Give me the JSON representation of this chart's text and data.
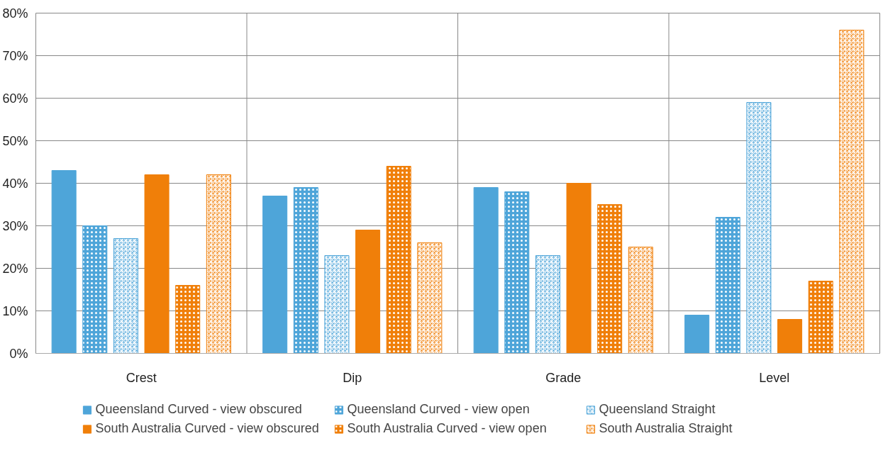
{
  "chart_data": {
    "type": "bar",
    "categories": [
      "Crest",
      "Dip",
      "Grade",
      "Level"
    ],
    "series": [
      {
        "name": "Queensland Curved - view obscured",
        "color": "#4ea5d9",
        "values": [
          43,
          37,
          39,
          9
        ]
      },
      {
        "name": "Queensland Curved - view open",
        "color": "#4ea5d9",
        "values": [
          30,
          39,
          38,
          32
        ]
      },
      {
        "name": "Queensland Straight",
        "color": "#4ea5d9",
        "values": [
          27,
          23,
          23,
          59
        ]
      },
      {
        "name": "South Australia Curved - view obscured",
        "color": "#f07f09",
        "values": [
          42,
          29,
          40,
          8
        ]
      },
      {
        "name": "South Australia Curved - view open",
        "color": "#f07f09",
        "values": [
          16,
          44,
          35,
          17
        ]
      },
      {
        "name": "South Australia Straight",
        "color": "#f07f09",
        "values": [
          42,
          26,
          25,
          76
        ]
      }
    ],
    "ylim": [
      0,
      80
    ],
    "yticks": [
      {
        "value": 0,
        "label": "0%"
      },
      {
        "value": 10,
        "label": "10%"
      },
      {
        "value": 20,
        "label": "20%"
      },
      {
        "value": 30,
        "label": "30%"
      },
      {
        "value": 40,
        "label": "40%"
      },
      {
        "value": 50,
        "label": "50%"
      },
      {
        "value": 60,
        "label": "60%"
      },
      {
        "value": 70,
        "label": "70%"
      },
      {
        "value": 80,
        "label": "80%"
      }
    ],
    "grid": true,
    "legend": "bottom"
  }
}
